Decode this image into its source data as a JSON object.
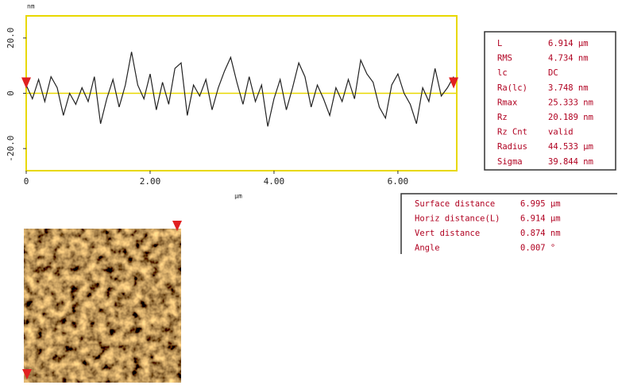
{
  "chart_data": {
    "type": "line",
    "y_label": "nm",
    "x_label": "µm",
    "color": "#222222",
    "x": [
      0.0,
      0.1,
      0.2,
      0.3,
      0.4,
      0.5,
      0.6,
      0.7,
      0.8,
      0.9,
      1.0,
      1.1,
      1.2,
      1.3,
      1.4,
      1.5,
      1.6,
      1.7,
      1.8,
      1.9,
      2.0,
      2.1,
      2.2,
      2.3,
      2.4,
      2.5,
      2.6,
      2.7,
      2.8,
      2.9,
      3.0,
      3.1,
      3.2,
      3.3,
      3.4,
      3.5,
      3.6,
      3.7,
      3.8,
      3.9,
      4.0,
      4.1,
      4.2,
      4.3,
      4.4,
      4.5,
      4.6,
      4.7,
      4.8,
      4.9,
      5.0,
      5.1,
      5.2,
      5.3,
      5.4,
      5.5,
      5.6,
      5.7,
      5.8,
      5.9,
      6.0,
      6.1,
      6.2,
      6.3,
      6.4,
      6.5,
      6.6,
      6.7,
      6.8,
      6.9
    ],
    "values": [
      3,
      -2,
      5,
      -3,
      6,
      2,
      -8,
      0,
      -4,
      2,
      -3,
      6,
      -11,
      -2,
      5,
      -5,
      3,
      15,
      3,
      -2,
      7,
      -6,
      4,
      -4,
      9,
      11,
      -8,
      3,
      -1,
      5,
      -6,
      2,
      8,
      13,
      4,
      -4,
      6,
      -3,
      3,
      -12,
      -2,
      5,
      -6,
      2,
      11,
      6,
      -5,
      3,
      -2,
      -8,
      2,
      -3,
      5,
      -2,
      12,
      7,
      4,
      -5,
      -9,
      3,
      7,
      0,
      -4,
      -11,
      2,
      -3,
      9,
      -1,
      2,
      6
    ],
    "xlim": [
      0,
      6.95
    ],
    "xticks": [
      0,
      {
        "value": 2,
        "label": "2.00"
      },
      {
        "value": 4,
        "label": "4.00"
      },
      {
        "value": 6,
        "label": "6.00"
      }
    ],
    "ylim": [
      -28,
      28
    ],
    "yticks": [
      {
        "value": 20,
        "label": "20.0"
      },
      0,
      {
        "value": -20,
        "label": "-20.0"
      }
    ]
  },
  "profile_stats": {
    "rows": [
      [
        "L",
        "6.914 µm"
      ],
      [
        "RMS",
        "4.734 nm"
      ],
      [
        "lc",
        "DC"
      ],
      [
        "Ra(lc)",
        "3.748 nm"
      ],
      [
        "Rmax",
        "25.333 nm"
      ],
      [
        "Rz",
        "20.189 nm"
      ],
      [
        "Rz Cnt",
        "valid"
      ],
      [
        "Radius",
        "44.533 µm"
      ],
      [
        "Sigma",
        "39.844 nm"
      ]
    ]
  },
  "cursor_stats": {
    "rows": [
      [
        "Surface distance",
        "6.995 µm"
      ],
      [
        "Horiz distance(L)",
        "6.914 µm"
      ],
      [
        "Vert distance",
        "0.874 nm"
      ],
      [
        "Angle",
        "0.007 °"
      ]
    ]
  }
}
